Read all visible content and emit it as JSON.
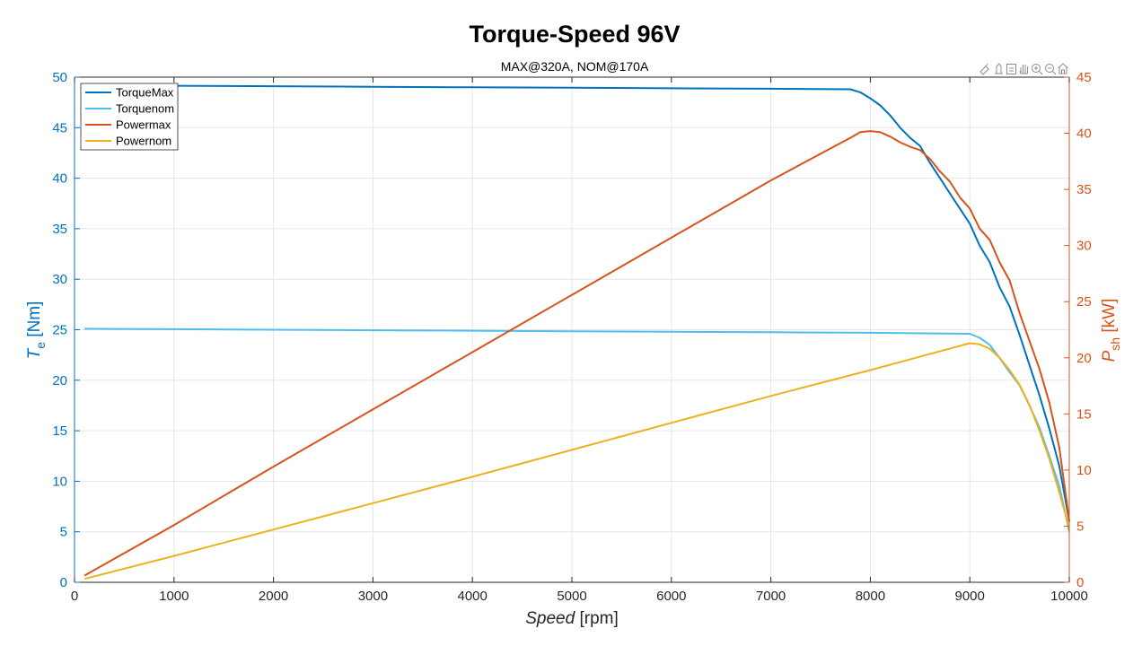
{
  "chart_data": {
    "type": "line",
    "title": "Torque-Speed 96V",
    "subtitle": "MAX@320A, NOM@170A",
    "xlabel": {
      "italic": "Speed",
      "unit": " [rpm]"
    },
    "ylabel_left": {
      "symbol": "T",
      "subscript": "e",
      "unit": " [Nm]"
    },
    "ylabel_right": {
      "symbol": "P",
      "subscript": "sh",
      "unit": " [kW]"
    },
    "xlim": [
      0,
      10000
    ],
    "ylim_left": [
      0,
      50
    ],
    "ylim_right": [
      0,
      45
    ],
    "xticks": [
      0,
      1000,
      2000,
      3000,
      4000,
      5000,
      6000,
      7000,
      8000,
      9000,
      10000
    ],
    "yticks_left": [
      0,
      5,
      10,
      15,
      20,
      25,
      30,
      35,
      40,
      45,
      50
    ],
    "yticks_right": [
      0,
      5,
      10,
      15,
      20,
      25,
      30,
      35,
      40,
      45
    ],
    "grid": true,
    "legend_position": "top-left",
    "axis_colors": {
      "left": "#0072BD",
      "right": "#D95319",
      "x": "#262626"
    },
    "series": [
      {
        "name": "TorqueMax",
        "axis": "left",
        "color": "#0072BD",
        "x": [
          100,
          1000,
          2000,
          3000,
          4000,
          5000,
          6000,
          7000,
          7800,
          7900,
          8000,
          8100,
          8200,
          8300,
          8400,
          8500,
          8600,
          8700,
          8800,
          8900,
          9000,
          9100,
          9200,
          9300,
          9400,
          9500,
          9600,
          9700,
          9800,
          9900,
          10000
        ],
        "y": [
          49.2,
          49.15,
          49.1,
          49.05,
          49.0,
          48.95,
          48.9,
          48.85,
          48.8,
          48.5,
          47.9,
          47.2,
          46.2,
          45.0,
          44.0,
          43.2,
          41.5,
          40.0,
          38.5,
          37.0,
          35.5,
          33.3,
          31.7,
          29.2,
          27.3,
          24.5,
          21.5,
          18.5,
          15.2,
          11.5,
          6.0
        ]
      },
      {
        "name": "Torquenom",
        "axis": "left",
        "color": "#4DBEEE",
        "x": [
          100,
          1000,
          2000,
          3000,
          4000,
          5000,
          6000,
          7000,
          8000,
          9000,
          9100,
          9200,
          9300,
          9400,
          9500,
          9600,
          9700,
          9800,
          9900,
          10000
        ],
        "y": [
          25.1,
          25.05,
          25.0,
          24.95,
          24.9,
          24.85,
          24.8,
          24.75,
          24.7,
          24.6,
          24.2,
          23.5,
          22.2,
          20.8,
          19.5,
          17.5,
          15.3,
          12.5,
          9.5,
          5.0
        ]
      },
      {
        "name": "Powermax",
        "axis": "right",
        "color": "#D95319",
        "x": [
          100,
          1000,
          2000,
          3000,
          4000,
          5000,
          6000,
          7000,
          7800,
          7900,
          8000,
          8100,
          8200,
          8300,
          8400,
          8500,
          8600,
          8700,
          8800,
          8900,
          9000,
          9100,
          9200,
          9300,
          9400,
          9500,
          9600,
          9700,
          9800,
          9900,
          10000
        ],
        "y": [
          0.6,
          5.1,
          10.3,
          15.4,
          20.5,
          25.6,
          30.7,
          35.8,
          39.6,
          40.1,
          40.2,
          40.1,
          39.7,
          39.2,
          38.8,
          38.5,
          37.7,
          36.6,
          35.7,
          34.3,
          33.3,
          31.5,
          30.5,
          28.5,
          26.9,
          24.0,
          21.5,
          19.0,
          16.0,
          12.0,
          5.5
        ]
      },
      {
        "name": "Powernom",
        "axis": "right",
        "color": "#EDB120",
        "x": [
          100,
          1000,
          2000,
          3000,
          4000,
          5000,
          6000,
          7000,
          8000,
          9000,
          9100,
          9200,
          9300,
          9400,
          9500,
          9600,
          9700,
          9800,
          9900,
          10000
        ],
        "y": [
          0.3,
          2.35,
          4.7,
          7.05,
          9.4,
          11.8,
          14.2,
          16.6,
          18.9,
          21.3,
          21.2,
          20.8,
          20.0,
          18.9,
          17.6,
          15.8,
          13.5,
          11.0,
          8.0,
          4.8
        ]
      }
    ]
  }
}
